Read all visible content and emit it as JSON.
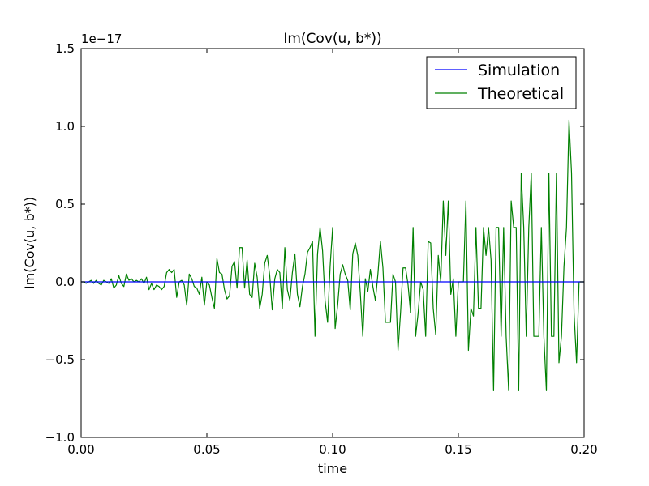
{
  "chart_data": {
    "type": "line",
    "title": "Im(Cov(u, b*))",
    "xlabel": "time",
    "ylabel": "Im(Cov(u, b*))",
    "offset_label": "1e−17",
    "xlim": [
      0.0,
      0.2
    ],
    "ylim": [
      -1.0,
      1.5
    ],
    "xticks": [
      0.0,
      0.05,
      0.1,
      0.15,
      0.2
    ],
    "xtick_labels": [
      "0.00",
      "0.05",
      "0.10",
      "0.15",
      "0.20"
    ],
    "yticks": [
      -1.0,
      -0.5,
      0.0,
      0.5,
      1.0,
      1.5
    ],
    "ytick_labels": [
      "−1.0",
      "−0.5",
      "0.0",
      "0.5",
      "1.0",
      "1.5"
    ],
    "grid": false,
    "legend_position": "top-right",
    "series": [
      {
        "name": "Simulation",
        "color": "#0000ff",
        "x": [
          0.0,
          0.2
        ],
        "y": [
          0.0,
          0.0
        ]
      },
      {
        "name": "Theoretical",
        "color": "#008000",
        "x": [
          0.0,
          0.001,
          0.002,
          0.003,
          0.004,
          0.005,
          0.006,
          0.007,
          0.008,
          0.009,
          0.01,
          0.011,
          0.012,
          0.013,
          0.014,
          0.015,
          0.016,
          0.017,
          0.018,
          0.019,
          0.02,
          0.021,
          0.022,
          0.023,
          0.024,
          0.025,
          0.026,
          0.027,
          0.028,
          0.029,
          0.03,
          0.031,
          0.032,
          0.033,
          0.034,
          0.035,
          0.036,
          0.037,
          0.038,
          0.039,
          0.04,
          0.041,
          0.042,
          0.043,
          0.044,
          0.045,
          0.046,
          0.047,
          0.048,
          0.049,
          0.05,
          0.051,
          0.052,
          0.053,
          0.054,
          0.055,
          0.056,
          0.057,
          0.058,
          0.059,
          0.06,
          0.061,
          0.062,
          0.063,
          0.064,
          0.065,
          0.066,
          0.067,
          0.068,
          0.069,
          0.07,
          0.071,
          0.072,
          0.073,
          0.074,
          0.075,
          0.076,
          0.077,
          0.078,
          0.079,
          0.08,
          0.081,
          0.082,
          0.083,
          0.084,
          0.085,
          0.086,
          0.087,
          0.088,
          0.089,
          0.09,
          0.091,
          0.092,
          0.093,
          0.094,
          0.095,
          0.096,
          0.097,
          0.098,
          0.099,
          0.1,
          0.101,
          0.102,
          0.103,
          0.104,
          0.105,
          0.106,
          0.107,
          0.108,
          0.109,
          0.11,
          0.111,
          0.112,
          0.113,
          0.114,
          0.115,
          0.116,
          0.117,
          0.118,
          0.119,
          0.12,
          0.121,
          0.122,
          0.123,
          0.124,
          0.125,
          0.126,
          0.127,
          0.128,
          0.129,
          0.13,
          0.131,
          0.132,
          0.133,
          0.134,
          0.135,
          0.136,
          0.137,
          0.138,
          0.139,
          0.14,
          0.141,
          0.142,
          0.143,
          0.144,
          0.145,
          0.146,
          0.147,
          0.148,
          0.149,
          0.15,
          0.151,
          0.152,
          0.153,
          0.154,
          0.155,
          0.156,
          0.157,
          0.158,
          0.159,
          0.16,
          0.161,
          0.162,
          0.163,
          0.164,
          0.165,
          0.166,
          0.167,
          0.168,
          0.169,
          0.17,
          0.171,
          0.172,
          0.173,
          0.174,
          0.175,
          0.176,
          0.177,
          0.178,
          0.179,
          0.18,
          0.181,
          0.182,
          0.183,
          0.184,
          0.185,
          0.186,
          0.187,
          0.188,
          0.189,
          0.19,
          0.191,
          0.192,
          0.193,
          0.194,
          0.195,
          0.196,
          0.197,
          0.198,
          0.199,
          0.2
        ],
        "y": [
          0.0,
          0.0,
          -0.01,
          0.0,
          0.01,
          -0.01,
          0.01,
          -0.01,
          -0.02,
          0.01,
          0.0,
          -0.01,
          0.02,
          -0.04,
          -0.02,
          0.04,
          -0.01,
          -0.03,
          0.05,
          0.01,
          0.02,
          0.0,
          0.01,
          0.0,
          0.02,
          -0.01,
          0.03,
          -0.05,
          -0.01,
          -0.05,
          -0.02,
          -0.03,
          -0.05,
          -0.03,
          0.06,
          0.08,
          0.06,
          0.08,
          -0.1,
          0.0,
          0.01,
          -0.02,
          -0.15,
          0.05,
          0.02,
          -0.03,
          -0.04,
          -0.08,
          0.03,
          -0.15,
          0.0,
          -0.02,
          -0.1,
          -0.17,
          0.15,
          0.06,
          0.05,
          -0.05,
          -0.11,
          -0.09,
          0.1,
          0.13,
          -0.04,
          0.22,
          0.22,
          -0.04,
          0.14,
          -0.08,
          -0.1,
          0.12,
          0.03,
          -0.17,
          -0.08,
          0.12,
          0.17,
          0.04,
          -0.18,
          0.02,
          0.08,
          0.06,
          -0.17,
          0.22,
          -0.05,
          -0.12,
          0.06,
          0.18,
          -0.08,
          -0.16,
          -0.03,
          0.05,
          0.19,
          0.22,
          0.26,
          -0.35,
          0.18,
          0.35,
          0.2,
          -0.12,
          -0.26,
          0.1,
          0.35,
          -0.3,
          -0.15,
          0.05,
          0.11,
          0.05,
          0.01,
          -0.18,
          0.18,
          0.25,
          0.17,
          -0.07,
          -0.35,
          0.02,
          -0.06,
          0.08,
          -0.03,
          -0.12,
          0.05,
          0.26,
          0.09,
          -0.26,
          -0.26,
          -0.26,
          0.05,
          0.0,
          -0.44,
          -0.2,
          0.09,
          0.09,
          -0.02,
          -0.2,
          0.35,
          -0.35,
          -0.2,
          0.0,
          -0.05,
          -0.35,
          0.26,
          0.25,
          -0.17,
          -0.34,
          0.17,
          0.0,
          0.52,
          0.17,
          0.52,
          -0.08,
          0.02,
          -0.35,
          0.0,
          0.0,
          0.0,
          0.52,
          -0.44,
          -0.17,
          -0.22,
          0.35,
          -0.17,
          -0.17,
          0.35,
          0.17,
          0.35,
          0.14,
          -0.7,
          0.35,
          0.35,
          -0.35,
          0.35,
          -0.35,
          -0.7,
          0.52,
          0.35,
          0.35,
          -0.7,
          0.7,
          0.35,
          -0.35,
          0.35,
          0.7,
          -0.35,
          -0.35,
          -0.35,
          0.35,
          -0.35,
          -0.7,
          0.7,
          -0.35,
          -0.35,
          0.7,
          -0.52,
          -0.35,
          0.1,
          0.35,
          1.04,
          0.7,
          -0.2,
          -0.52,
          0.0,
          0.0,
          0.0
        ]
      }
    ]
  }
}
